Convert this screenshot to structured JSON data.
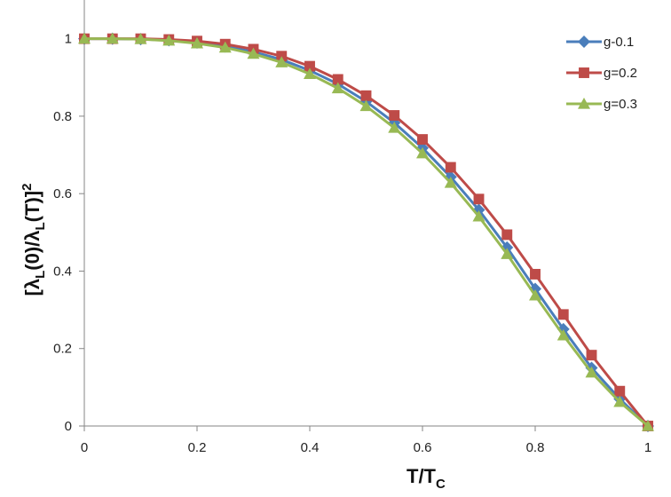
{
  "chart_data": {
    "type": "line",
    "xlabel": "T/T",
    "xlabel_sub": "C",
    "ylabel_parts": [
      "[λ",
      "L",
      "(0)/λ",
      "L",
      "(T)]",
      "2"
    ],
    "xlim": [
      0,
      1
    ],
    "ylim": [
      0,
      1.1
    ],
    "x_ticks": [
      0,
      0.2,
      0.4,
      0.6,
      0.8,
      1
    ],
    "x_tick_labels": [
      "0",
      "0.2",
      "0.4",
      "0.6",
      "0.8",
      "1"
    ],
    "y_ticks": [
      0,
      0.2,
      0.4,
      0.6,
      0.8,
      1
    ],
    "y_tick_labels": [
      "0",
      "0.2",
      "0.4",
      "0.6",
      "0.8",
      "1"
    ],
    "grid": false,
    "legend_position": "top-right",
    "x": [
      0,
      0.05,
      0.1,
      0.15,
      0.2,
      0.25,
      0.3,
      0.35,
      0.4,
      0.45,
      0.5,
      0.55,
      0.6,
      0.65,
      0.7,
      0.75,
      0.8,
      0.85,
      0.9,
      0.95,
      1.0
    ],
    "series": [
      {
        "name": "g-0.1",
        "color": "#4a7ebb",
        "marker": "diamond",
        "values": [
          1.0,
          1.0,
          0.999,
          0.996,
          0.99,
          0.98,
          0.966,
          0.946,
          0.918,
          0.883,
          0.838,
          0.783,
          0.718,
          0.643,
          0.558,
          0.461,
          0.354,
          0.25,
          0.15,
          0.07,
          0.0
        ]
      },
      {
        "name": "g=0.2",
        "color": "#be4b48",
        "marker": "square",
        "values": [
          1.0,
          1.0,
          1.0,
          0.998,
          0.994,
          0.986,
          0.973,
          0.955,
          0.929,
          0.895,
          0.853,
          0.802,
          0.74,
          0.668,
          0.586,
          0.494,
          0.392,
          0.288,
          0.183,
          0.09,
          0.0
        ]
      },
      {
        "name": "g=0.3",
        "color": "#98b954",
        "marker": "triangle",
        "values": [
          1.0,
          1.0,
          0.999,
          0.995,
          0.988,
          0.977,
          0.961,
          0.939,
          0.909,
          0.872,
          0.826,
          0.77,
          0.704,
          0.628,
          0.541,
          0.444,
          0.337,
          0.234,
          0.138,
          0.062,
          0.0
        ]
      }
    ]
  }
}
